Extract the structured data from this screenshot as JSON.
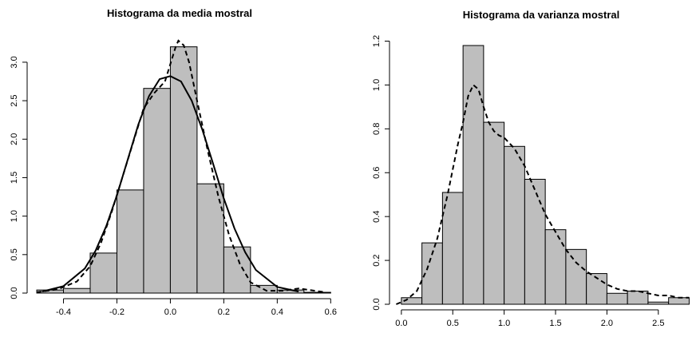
{
  "chart_data": [
    {
      "type": "bar",
      "title": "Histograma da media mostral",
      "xlabel": "",
      "ylabel": "",
      "xlim": [
        -0.53,
        0.62
      ],
      "ylim": [
        0,
        3.3
      ],
      "x_ticks": [
        "-0.4",
        "-0.2",
        "0.0",
        "0.2",
        "0.4",
        "0.6"
      ],
      "y_ticks": [
        "0.0",
        "0.5",
        "1.0",
        "1.5",
        "2.0",
        "2.5",
        "3.0"
      ],
      "bins": [
        {
          "start": -0.5,
          "end": -0.4,
          "density": 0.04
        },
        {
          "start": -0.4,
          "end": -0.3,
          "density": 0.06
        },
        {
          "start": -0.3,
          "end": -0.2,
          "density": 0.52
        },
        {
          "start": -0.2,
          "end": -0.1,
          "density": 1.34
        },
        {
          "start": -0.1,
          "end": 0.0,
          "density": 2.66
        },
        {
          "start": 0.0,
          "end": 0.1,
          "density": 3.2
        },
        {
          "start": 0.1,
          "end": 0.2,
          "density": 1.42
        },
        {
          "start": 0.2,
          "end": 0.3,
          "density": 0.6
        },
        {
          "start": 0.3,
          "end": 0.4,
          "density": 0.1
        },
        {
          "start": 0.4,
          "end": 0.5,
          "density": 0.04
        },
        {
          "start": 0.5,
          "end": 0.6,
          "density": 0.01
        }
      ],
      "series": [
        {
          "style": "solid",
          "x": [
            -0.48,
            -0.4,
            -0.32,
            -0.28,
            -0.24,
            -0.2,
            -0.16,
            -0.12,
            -0.08,
            -0.04,
            0.0,
            0.04,
            0.08,
            0.12,
            0.16,
            0.2,
            0.24,
            0.28,
            0.32,
            0.4,
            0.48
          ],
          "y": [
            0.02,
            0.09,
            0.32,
            0.55,
            0.87,
            1.27,
            1.73,
            2.19,
            2.56,
            2.78,
            2.82,
            2.75,
            2.5,
            2.12,
            1.68,
            1.23,
            0.84,
            0.53,
            0.3,
            0.08,
            0.02
          ]
        },
        {
          "style": "dashed",
          "x": [
            -0.5,
            -0.42,
            -0.35,
            -0.3,
            -0.26,
            -0.22,
            -0.18,
            -0.14,
            -0.1,
            -0.06,
            -0.02,
            0.02,
            0.03,
            0.05,
            0.07,
            0.1,
            0.14,
            0.18,
            0.22,
            0.26,
            0.3,
            0.36,
            0.42,
            0.48,
            0.52,
            0.58
          ],
          "y": [
            0.01,
            0.05,
            0.15,
            0.35,
            0.65,
            1.05,
            1.5,
            1.95,
            2.4,
            2.6,
            2.75,
            3.2,
            3.28,
            3.22,
            3.0,
            2.5,
            1.85,
            1.25,
            0.75,
            0.38,
            0.14,
            0.03,
            0.03,
            0.06,
            0.04,
            0.01
          ]
        }
      ]
    },
    {
      "type": "bar",
      "title": "Histograma da varianza mostral",
      "xlabel": "",
      "ylabel": "",
      "xlim": [
        -0.1,
        2.82
      ],
      "ylim": [
        0,
        1.22
      ],
      "x_ticks": [
        "0.0",
        "0.5",
        "1.0",
        "1.5",
        "2.0",
        "2.5"
      ],
      "y_ticks": [
        "0.0",
        "0.2",
        "0.4",
        "0.6",
        "0.8",
        "1.0",
        "1.2"
      ],
      "bins": [
        {
          "start": 0.0,
          "end": 0.2,
          "density": 0.03
        },
        {
          "start": 0.2,
          "end": 0.4,
          "density": 0.28
        },
        {
          "start": 0.4,
          "end": 0.6,
          "density": 0.51
        },
        {
          "start": 0.6,
          "end": 0.8,
          "density": 1.18
        },
        {
          "start": 0.8,
          "end": 1.0,
          "density": 0.83
        },
        {
          "start": 1.0,
          "end": 1.2,
          "density": 0.72
        },
        {
          "start": 1.2,
          "end": 1.4,
          "density": 0.57
        },
        {
          "start": 1.4,
          "end": 1.6,
          "density": 0.34
        },
        {
          "start": 1.6,
          "end": 1.8,
          "density": 0.25
        },
        {
          "start": 1.8,
          "end": 2.0,
          "density": 0.14
        },
        {
          "start": 2.0,
          "end": 2.2,
          "density": 0.05
        },
        {
          "start": 2.2,
          "end": 2.4,
          "density": 0.06
        },
        {
          "start": 2.4,
          "end": 2.6,
          "density": 0.01
        },
        {
          "start": 2.6,
          "end": 2.8,
          "density": 0.03
        }
      ],
      "series": [
        {
          "style": "dashed",
          "x": [
            -0.05,
            0.05,
            0.15,
            0.25,
            0.35,
            0.45,
            0.55,
            0.6,
            0.65,
            0.7,
            0.75,
            0.8,
            0.85,
            0.9,
            0.95,
            1.0,
            1.1,
            1.2,
            1.3,
            1.4,
            1.5,
            1.6,
            1.7,
            1.8,
            1.9,
            2.0,
            2.1,
            2.2,
            2.3,
            2.4,
            2.5,
            2.6,
            2.7,
            2.8
          ],
          "y": [
            0.0,
            0.02,
            0.06,
            0.16,
            0.3,
            0.5,
            0.73,
            0.83,
            0.95,
            1.0,
            0.98,
            0.9,
            0.83,
            0.79,
            0.77,
            0.76,
            0.71,
            0.63,
            0.52,
            0.41,
            0.33,
            0.25,
            0.19,
            0.15,
            0.12,
            0.09,
            0.07,
            0.06,
            0.06,
            0.05,
            0.04,
            0.04,
            0.03,
            0.03
          ]
        }
      ]
    }
  ]
}
